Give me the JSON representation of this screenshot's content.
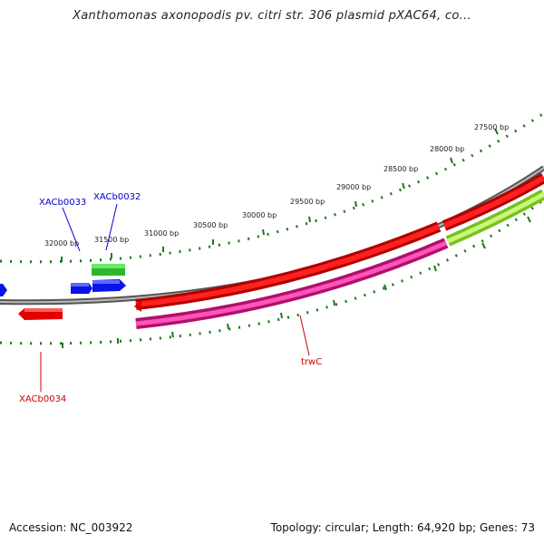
{
  "title": "Xanthomonas axonopodis pv. citri str. 306 plasmid pXAC64, co...",
  "footer": {
    "accession": "Accession: NC_003922",
    "topology": "Topology: circular; Length: 64,920 bp; Genes: 73"
  },
  "colors": {
    "backbone": "#808080",
    "ticks": "#1a7a1a",
    "red_gene": "#e00000",
    "pink_gene": "#e0168c",
    "green_gene": "#33cc33",
    "lime_gene": "#9be832",
    "blue_gene": "#0a14e6",
    "label_blue": "#0000cc",
    "label_red": "#cc0000"
  },
  "ticks": [
    {
      "label": "27500 bp"
    },
    {
      "label": "28000 bp"
    },
    {
      "label": "28500 bp"
    },
    {
      "label": "29000 bp"
    },
    {
      "label": "29500 bp"
    },
    {
      "label": "30000 bp"
    },
    {
      "label": "30500 bp"
    },
    {
      "label": "31000 bp"
    },
    {
      "label": "31500 bp"
    },
    {
      "label": "32000 bp"
    }
  ],
  "genes": [
    {
      "label": "XACb0033"
    },
    {
      "label": "XACb0032"
    },
    {
      "label": "XACb0034"
    },
    {
      "label": "trwC"
    }
  ]
}
